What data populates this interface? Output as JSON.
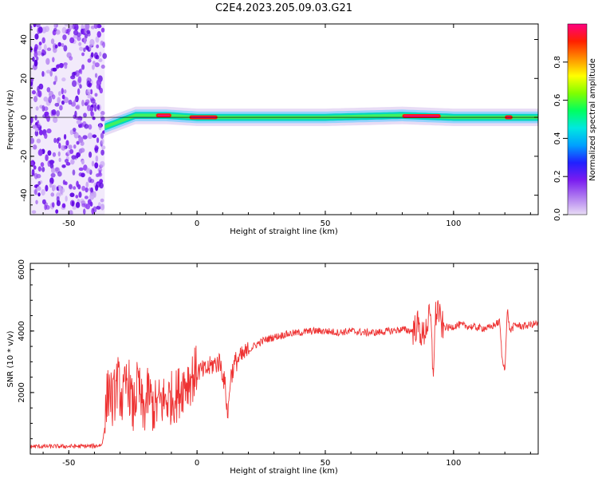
{
  "title": "C2E4.2023.205.09.03.G21",
  "chart_data": [
    {
      "type": "heatmap",
      "xlabel": "Height of straight line (km)",
      "ylabel": "Frequency (Hz)",
      "xlim": [
        -65,
        133
      ],
      "ylim": [
        -50,
        48
      ],
      "xticks": [
        -50,
        0,
        50,
        100
      ],
      "yticks": [
        -40,
        -20,
        0,
        20,
        40
      ],
      "noise_region_x": [
        -65,
        -36
      ],
      "ridge_frequency_hz": 0,
      "ridge_points": [
        {
          "x": -36,
          "y": -5
        },
        {
          "x": -32,
          "y": -3
        },
        {
          "x": -28,
          "y": -1
        },
        {
          "x": -24,
          "y": 1
        },
        {
          "x": -20,
          "y": 1
        },
        {
          "x": -12,
          "y": 1
        },
        {
          "x": 0,
          "y": 0
        },
        {
          "x": 20,
          "y": 0
        },
        {
          "x": 50,
          "y": 0
        },
        {
          "x": 80,
          "y": 1
        },
        {
          "x": 100,
          "y": 0
        },
        {
          "x": 133,
          "y": 0
        }
      ],
      "colorbar": {
        "label": "Normalized spectral amplitude",
        "ticks": [
          "0.0",
          "0.2",
          "0.4",
          "0.6",
          "0.8"
        ],
        "tick_values": [
          0,
          0.2,
          0.4,
          0.6,
          0.8
        ],
        "range": [
          0,
          1
        ],
        "colors": [
          "#e8dcf5",
          "#b07cf0",
          "#7a1cf0",
          "#2020ff",
          "#00a0ff",
          "#00e8e0",
          "#00ff60",
          "#80ff00",
          "#ffff00",
          "#ff9000",
          "#ff2000",
          "#ff0080"
        ]
      },
      "grid": false
    },
    {
      "type": "line",
      "xlabel": "Height of straight line (km)",
      "ylabel": "SNR (10 * v/v)",
      "xlim": [
        -65,
        133
      ],
      "ylim": [
        0,
        6200
      ],
      "xticks": [
        -50,
        0,
        50,
        100
      ],
      "yticks": [
        2000,
        4000,
        6000
      ],
      "series_color": "#ee3333",
      "series": [
        {
          "x": [
            -65,
            -50,
            -40,
            -37,
            -36,
            -35,
            -34,
            -33,
            -31,
            -29,
            -27,
            -25,
            -23,
            -21,
            -19,
            -17,
            -14,
            -11,
            -8,
            -5,
            -2,
            0,
            3,
            6,
            9,
            11,
            12,
            13,
            15,
            18,
            22,
            26,
            30,
            35,
            40,
            45,
            50,
            55,
            60,
            65,
            70,
            75,
            80,
            84,
            86,
            88,
            90,
            91,
            92,
            93,
            94,
            95,
            98,
            102,
            106,
            110,
            114,
            116,
            118,
            119,
            120,
            121,
            122,
            124,
            127,
            130,
            133
          ],
          "y": [
            250,
            250,
            260,
            300,
            900,
            1900,
            2200,
            1600,
            2400,
            1700,
            2500,
            1400,
            2300,
            1300,
            2000,
            1500,
            1700,
            1800,
            1900,
            2300,
            2500,
            2700,
            2700,
            2900,
            3000,
            2200,
            1200,
            2500,
            3000,
            3200,
            3500,
            3700,
            3800,
            3900,
            3950,
            4000,
            4000,
            3950,
            4000,
            3950,
            3950,
            4000,
            4050,
            4000,
            4200,
            3800,
            4300,
            4500,
            2600,
            4500,
            4800,
            4200,
            4100,
            4200,
            4150,
            4100,
            4100,
            4200,
            4300,
            3000,
            2800,
            4700,
            4000,
            4200,
            4150,
            4200,
            4250
          ]
        }
      ],
      "grid": false
    }
  ]
}
